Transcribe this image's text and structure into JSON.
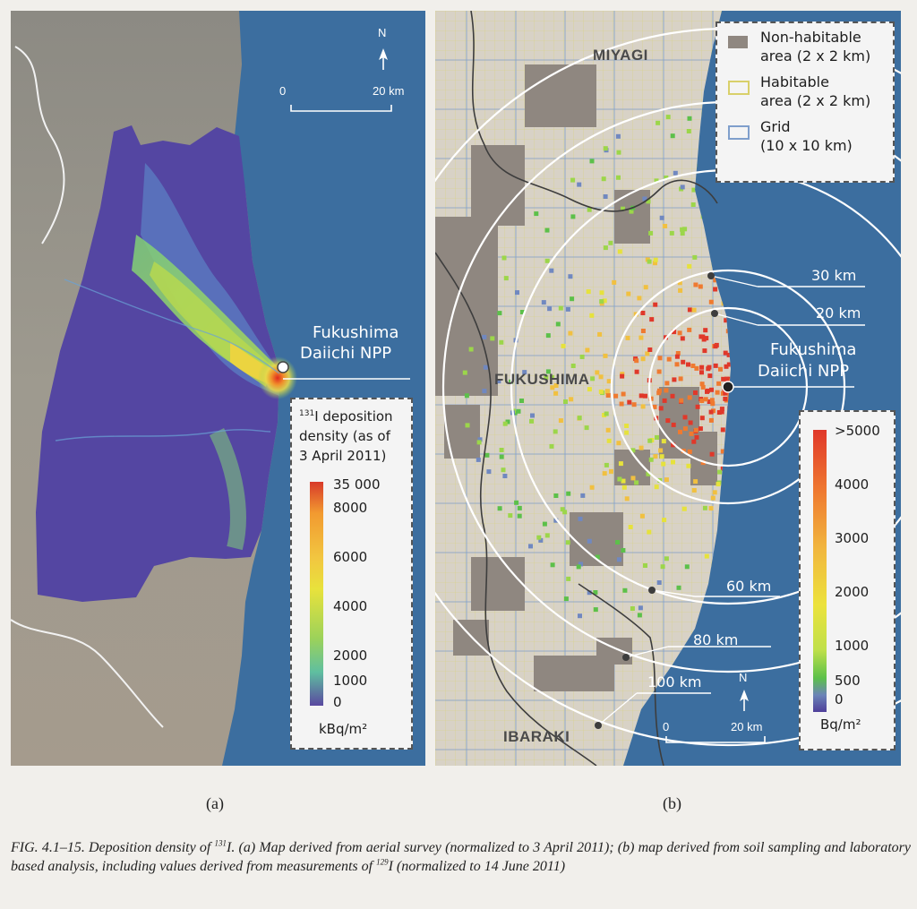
{
  "panel_a": {
    "north": "N",
    "scale": {
      "start": "0",
      "end": "20 km"
    },
    "npp_label_1": "Fukushima",
    "npp_label_2": "Daiichi NPP",
    "legend": {
      "title_sup": "131",
      "title_1": "I deposition",
      "title_2": "density (as of",
      "title_3": "3 April 2011)",
      "ticks": [
        "35 000",
        "8000",
        "6000",
        "4000",
        "2000",
        "1000",
        "0"
      ],
      "unit": "kBq/m²"
    }
  },
  "panel_b": {
    "regions": {
      "north": "MIYAGI",
      "center": "FUKUSHIMA",
      "south": "IBARAKI"
    },
    "legend": {
      "items": [
        {
          "label_1": "Non-habitable",
          "label_2": "area (2 x 2 km)",
          "swatch": "#8f8780"
        },
        {
          "label_1": "Habitable",
          "label_2": "area (2 x 2 km)",
          "swatch": "#e8e08a"
        },
        {
          "label_1": "Grid",
          "label_2": "(10 x 10 km)",
          "swatch": "#7f9fcc"
        }
      ]
    },
    "rings": [
      "20 km",
      "30 km",
      "60 km",
      "80 km",
      "100 km"
    ],
    "npp_label_1": "Fukushima",
    "npp_label_2": "Daiichi NPP",
    "north": "N",
    "scale": {
      "start": "0",
      "end": "20 km"
    },
    "colorbar": {
      "ticks": [
        ">5000",
        "4000",
        "3000",
        "2000",
        "1000",
        "500",
        "0"
      ],
      "unit": "Bq/m²"
    }
  },
  "sublabels": {
    "a": "(a)",
    "b": "(b)"
  },
  "caption": {
    "p1": "FIG. 4.1–15. Deposition density of ",
    "sup1": "131",
    "p2": "I. (a) Map derived from aerial survey (normalized to 3 April 2011); (b) map derived from soil sampling and laboratory based analysis, including values derived from measurements of ",
    "sup2": "129",
    "p3": "I (normalized to 14 June 2011)"
  },
  "colors": {
    "sea": "#3c6e9f",
    "land": "#d8d2c6",
    "hot": "#e8382a",
    "low": "#4b3f9a"
  }
}
